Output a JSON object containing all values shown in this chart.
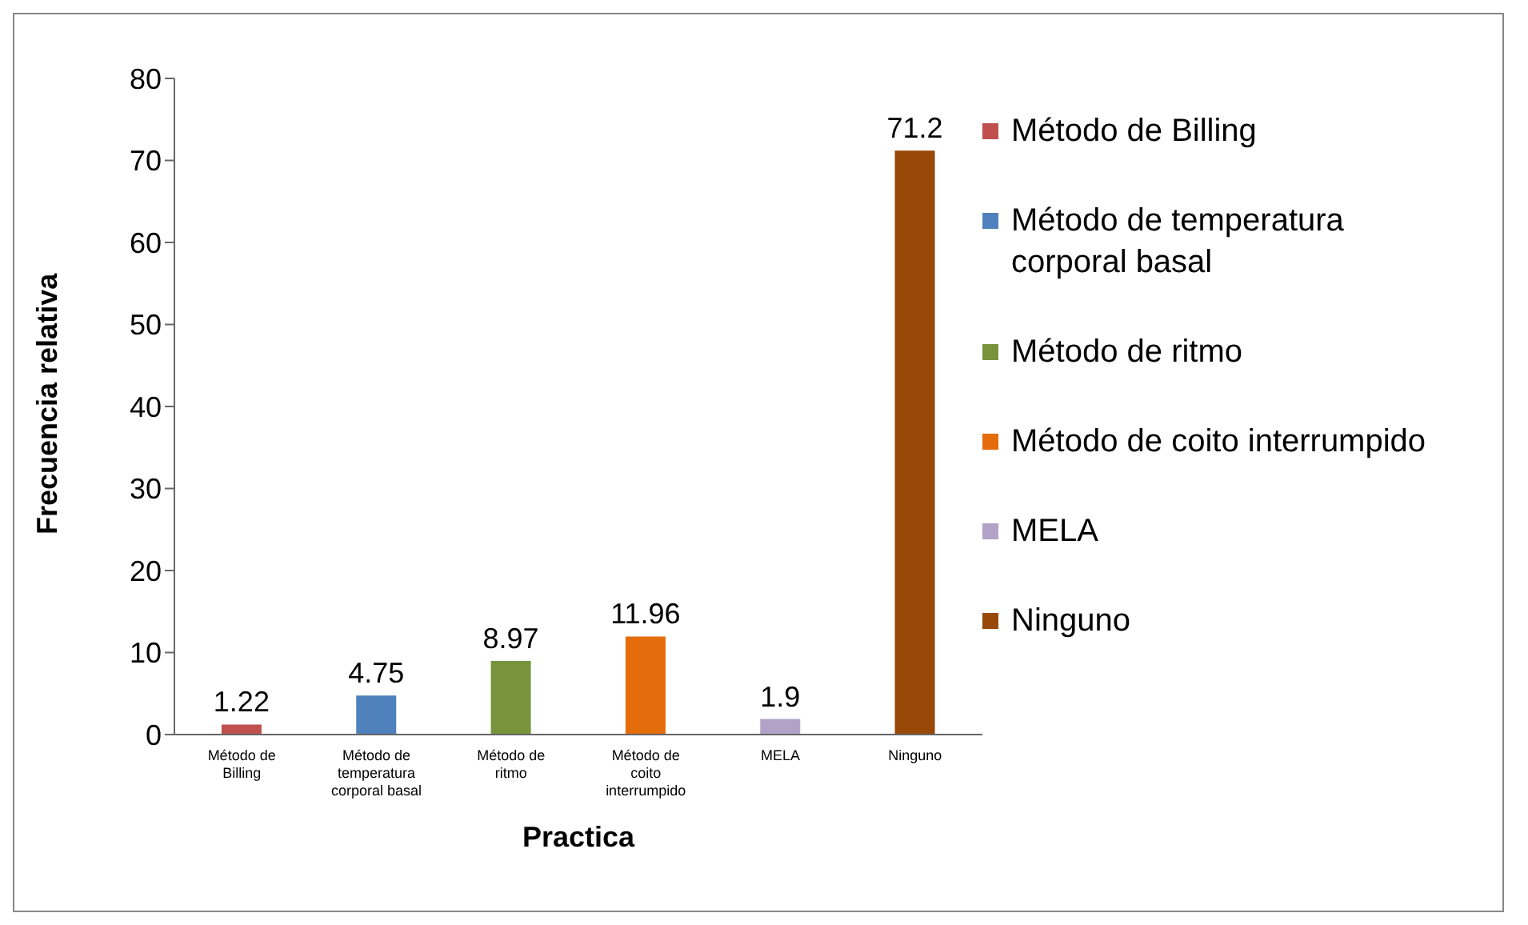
{
  "chart_data": {
    "type": "bar",
    "xlabel": "Practica",
    "ylabel": "Frecuencia relativa",
    "categories": [
      "Método de Billing",
      "Método de temperatura corporal basal",
      "Método de ritmo",
      "Método de coito interrumpido",
      "MELA",
      "Ninguno"
    ],
    "series": [
      {
        "name": "Método de Billing",
        "color": "#c0504d",
        "values": [
          1.22,
          null,
          null,
          null,
          null,
          null
        ]
      },
      {
        "name": "Método de temperatura corporal basal",
        "color": "#4f81bd",
        "values": [
          null,
          4.75,
          null,
          null,
          null,
          null
        ]
      },
      {
        "name": "Método de ritmo",
        "color": "#77933c",
        "values": [
          null,
          null,
          8.97,
          null,
          null,
          null
        ]
      },
      {
        "name": "Método de coito interrumpido",
        "color": "#e46c0a",
        "values": [
          null,
          null,
          null,
          11.96,
          null,
          null
        ]
      },
      {
        "name": "MELA",
        "color": "#b3a2c7",
        "values": [
          null,
          null,
          null,
          null,
          1.9,
          null
        ]
      },
      {
        "name": "Ninguno",
        "color": "#984807",
        "values": [
          null,
          null,
          null,
          null,
          null,
          71.2
        ]
      }
    ],
    "stacked": true,
    "ylim": [
      0,
      80
    ],
    "yticks": [
      0,
      10,
      20,
      30,
      40,
      50,
      60,
      70,
      80
    ],
    "data_labels": true,
    "legend": "right",
    "grid": false
  }
}
